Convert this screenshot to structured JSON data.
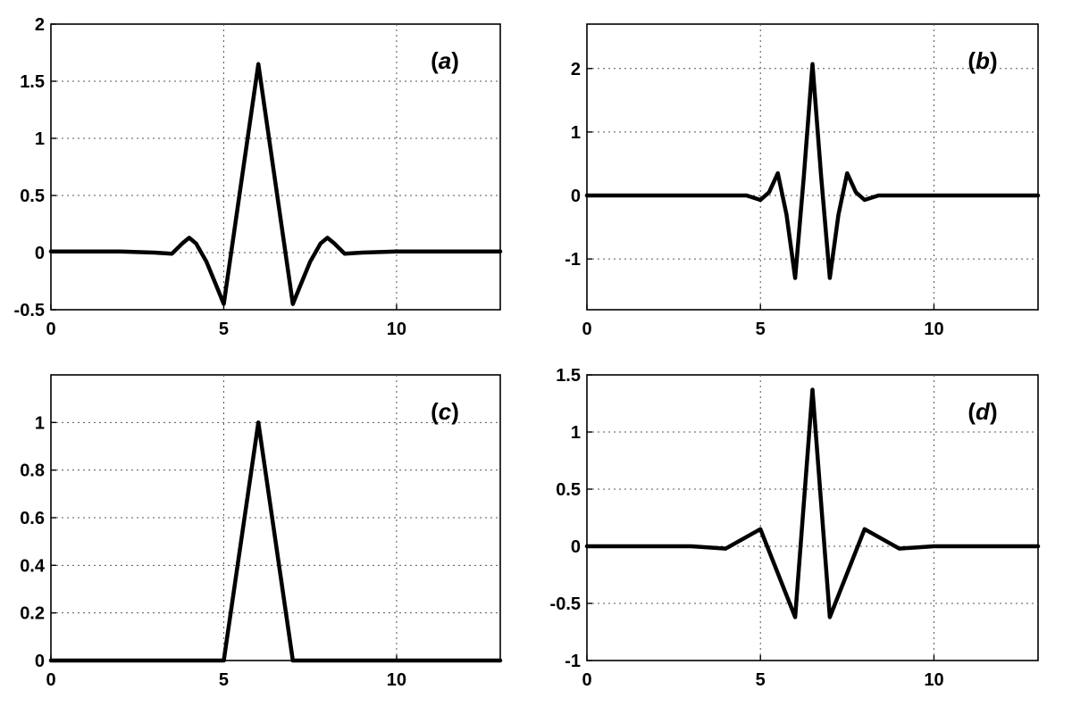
{
  "chart_data": [
    {
      "panel": "a",
      "label_prefix": "(",
      "label_letter": "a",
      "label_suffix": ")",
      "type": "line",
      "xlim": [
        0,
        13
      ],
      "ylim": [
        -0.5,
        2
      ],
      "xticks": [
        0,
        5,
        10
      ],
      "yticks": [
        -0.5,
        0,
        0.5,
        1,
        1.5,
        2
      ],
      "xtick_labels": [
        "0",
        "5",
        "10"
      ],
      "ytick_labels": [
        "-0.5",
        "0",
        "0.5",
        "1",
        "1.5",
        "2"
      ],
      "grid": true,
      "series": [
        {
          "x": [
            0,
            1,
            2,
            3,
            3.5,
            3.8,
            4,
            4.2,
            4.5,
            4.8,
            5,
            5.5,
            6,
            6.5,
            7,
            7.2,
            7.5,
            7.8,
            8,
            8.2,
            8.5,
            9,
            10,
            11,
            12,
            13
          ],
          "y": [
            0.01,
            0.01,
            0.01,
            0.0,
            -0.01,
            0.08,
            0.13,
            0.08,
            -0.08,
            -0.3,
            -0.45,
            0.6,
            1.65,
            0.6,
            -0.45,
            -0.3,
            -0.08,
            0.08,
            0.13,
            0.08,
            -0.01,
            0.0,
            0.01,
            0.01,
            0.01,
            0.01
          ]
        }
      ]
    },
    {
      "panel": "b",
      "label_prefix": "(",
      "label_letter": "b",
      "label_suffix": ")",
      "type": "line",
      "xlim": [
        0,
        13
      ],
      "ylim": [
        -1.8,
        2.7
      ],
      "xticks": [
        0,
        5,
        10
      ],
      "yticks": [
        -1,
        0,
        1,
        2
      ],
      "xtick_labels": [
        "0",
        "5",
        "10"
      ],
      "ytick_labels": [
        "-1",
        "0",
        "1",
        "2"
      ],
      "grid": true,
      "series": [
        {
          "x": [
            0,
            2,
            4,
            4.6,
            5,
            5.25,
            5.5,
            5.75,
            6,
            6.25,
            6.5,
            6.75,
            7,
            7.25,
            7.5,
            7.75,
            8,
            8.4,
            9,
            11,
            13
          ],
          "y": [
            0,
            0,
            0,
            0.0,
            -0.07,
            0.05,
            0.35,
            -0.3,
            -1.3,
            0.3,
            2.07,
            0.3,
            -1.3,
            -0.3,
            0.35,
            0.05,
            -0.07,
            0.0,
            0,
            0,
            0
          ]
        }
      ]
    },
    {
      "panel": "c",
      "label_prefix": "(",
      "label_letter": "c",
      "label_suffix": ")",
      "type": "line",
      "xlim": [
        0,
        13
      ],
      "ylim": [
        0,
        1.2
      ],
      "xticks": [
        0,
        5,
        10
      ],
      "yticks": [
        0,
        0.2,
        0.4,
        0.6,
        0.8,
        1
      ],
      "xtick_labels": [
        "0",
        "5",
        "10"
      ],
      "ytick_labels": [
        "0",
        "0.2",
        "0.4",
        "0.6",
        "0.8",
        "1"
      ],
      "grid": true,
      "series": [
        {
          "x": [
            0,
            5,
            6,
            7,
            13
          ],
          "y": [
            0,
            0,
            1,
            0,
            0
          ]
        }
      ]
    },
    {
      "panel": "d",
      "label_prefix": "(",
      "label_letter": "d",
      "label_suffix": ")",
      "type": "line",
      "xlim": [
        0,
        13
      ],
      "ylim": [
        -1,
        1.5
      ],
      "xticks": [
        0,
        5,
        10
      ],
      "yticks": [
        -1,
        -0.5,
        0,
        0.5,
        1,
        1.5
      ],
      "xtick_labels": [
        "0",
        "5",
        "10"
      ],
      "ytick_labels": [
        "-1",
        "-0.5",
        "0",
        "0.5",
        "1",
        "1.5"
      ],
      "grid": true,
      "series": [
        {
          "x": [
            0,
            3,
            4,
            5,
            6,
            6.5,
            7,
            8,
            9,
            10,
            13
          ],
          "y": [
            0,
            0,
            -0.02,
            0.15,
            -0.62,
            1.37,
            -0.62,
            0.15,
            -0.02,
            0,
            0
          ]
        }
      ]
    }
  ]
}
